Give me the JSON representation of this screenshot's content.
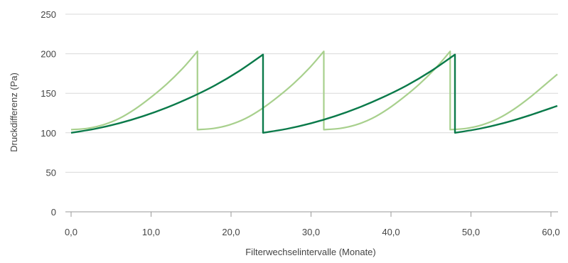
{
  "chart_data": {
    "type": "line",
    "title": "",
    "xlabel": "Filterwechselintervalle (Monate)",
    "ylabel": "Druckdifferenz (Pa)",
    "xlim": [
      0,
      61.2
    ],
    "ylim": [
      0,
      250
    ],
    "xticks": [
      0,
      10,
      20,
      30,
      40,
      50,
      60
    ],
    "xtick_labels": [
      "0,0",
      "10,0",
      "20,0",
      "30,0",
      "40,0",
      "50,0",
      "60,0"
    ],
    "yticks": [
      0,
      50,
      100,
      150,
      200,
      250
    ],
    "ytick_labels": [
      "0",
      "50",
      "100",
      "150",
      "200",
      "250"
    ],
    "grid": "horizontal",
    "legend": "none",
    "series": [
      {
        "color": "#a8d08d",
        "points": [
          [
            0,
            104
          ],
          [
            2,
            105.5
          ],
          [
            4,
            110
          ],
          [
            6,
            118
          ],
          [
            8,
            130
          ],
          [
            10,
            145
          ],
          [
            12,
            162
          ],
          [
            14,
            182
          ],
          [
            15.8,
            203
          ],
          [
            15.8,
            104
          ],
          [
            17.8,
            105.5
          ],
          [
            19.8,
            110
          ],
          [
            21.8,
            118
          ],
          [
            23.8,
            130
          ],
          [
            25.8,
            145
          ],
          [
            27.8,
            162
          ],
          [
            29.8,
            182
          ],
          [
            31.6,
            203
          ],
          [
            31.6,
            104
          ],
          [
            33.6,
            105.5
          ],
          [
            35.6,
            110
          ],
          [
            37.6,
            118
          ],
          [
            39.6,
            130
          ],
          [
            41.6,
            145
          ],
          [
            43.6,
            162
          ],
          [
            45.6,
            182
          ],
          [
            47.4,
            203
          ],
          [
            47.4,
            104
          ],
          [
            49.4,
            105.5
          ],
          [
            51.4,
            110
          ],
          [
            53.4,
            118
          ],
          [
            55.4,
            130
          ],
          [
            57.4,
            145
          ],
          [
            59.4,
            162
          ],
          [
            60.8,
            174
          ]
        ]
      },
      {
        "color": "#0a7a4a",
        "points": [
          [
            0,
            100
          ],
          [
            3,
            105
          ],
          [
            6,
            112
          ],
          [
            9,
            121
          ],
          [
            12,
            132
          ],
          [
            15,
            145
          ],
          [
            18,
            160
          ],
          [
            21,
            178
          ],
          [
            24,
            199
          ],
          [
            24,
            100
          ],
          [
            27,
            105
          ],
          [
            30,
            112
          ],
          [
            33,
            121
          ],
          [
            36,
            132
          ],
          [
            39,
            145
          ],
          [
            42,
            160
          ],
          [
            45,
            178
          ],
          [
            48,
            199
          ],
          [
            48,
            100
          ],
          [
            51,
            105
          ],
          [
            54,
            112
          ],
          [
            57,
            121
          ],
          [
            60.8,
            134
          ]
        ]
      }
    ]
  }
}
